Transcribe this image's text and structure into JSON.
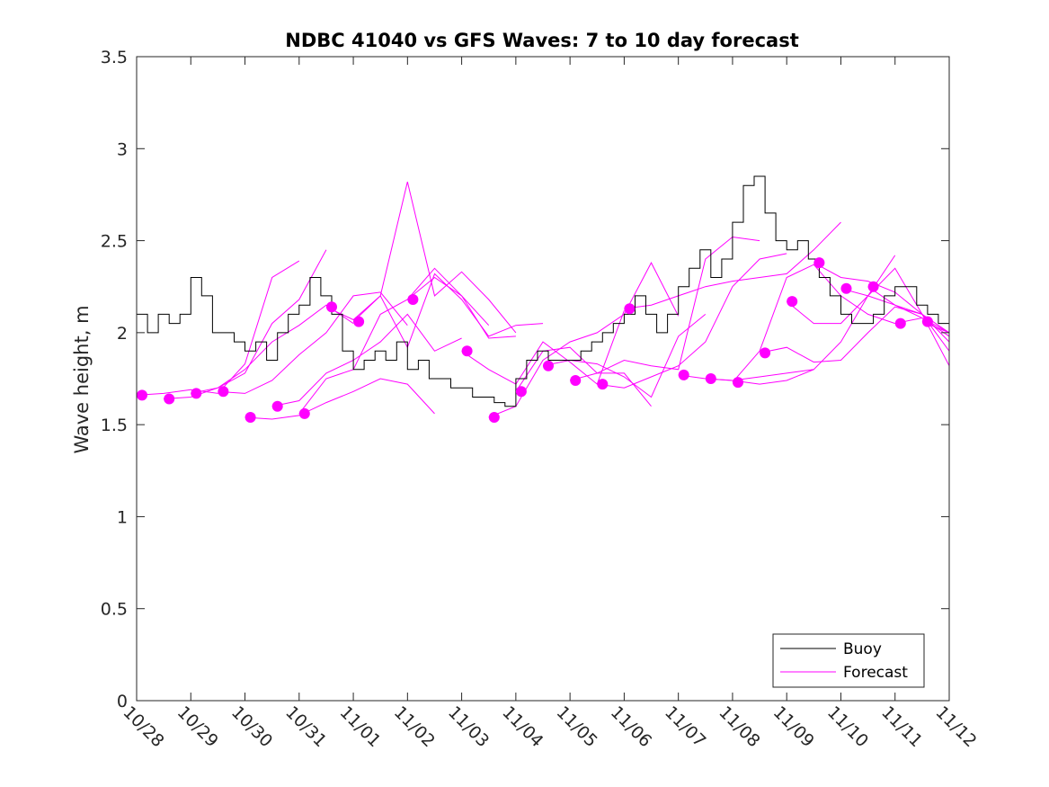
{
  "chart_data": {
    "type": "line",
    "title": "NDBC 41040 vs GFS Waves: 7 to 10 day forecast",
    "xlabel": "",
    "ylabel": "Wave height, m",
    "xlim": [
      0,
      15
    ],
    "ylim": [
      0,
      3.5
    ],
    "x_unit": "days since 10/28",
    "x_ticks": [
      0,
      1,
      2,
      3,
      4,
      5,
      6,
      7,
      8,
      9,
      10,
      11,
      12,
      13,
      14,
      15
    ],
    "x_tick_labels": [
      "10/28",
      "10/29",
      "10/30",
      "10/31",
      "11/01",
      "11/02",
      "11/03",
      "11/04",
      "11/05",
      "11/06",
      "11/07",
      "11/08",
      "11/09",
      "11/10",
      "11/11",
      "11/12"
    ],
    "y_ticks": [
      0,
      0.5,
      1,
      1.5,
      2,
      2.5,
      3,
      3.5
    ],
    "y_tick_labels": [
      "0",
      "0.5",
      "1",
      "1.5",
      "2",
      "2.5",
      "3",
      "3.5"
    ],
    "grid": false,
    "legend_position": "bottom-right",
    "colors": {
      "buoy": "#000000",
      "forecast": "#ff00ff",
      "axes": "#262626"
    },
    "series": [
      {
        "name": "Buoy",
        "style": "line",
        "color": "#000000",
        "x": [
          0,
          0.2,
          0.4,
          0.6,
          0.8,
          1.0,
          1.2,
          1.4,
          1.6,
          1.8,
          2.0,
          2.2,
          2.4,
          2.6,
          2.8,
          3.0,
          3.2,
          3.4,
          3.6,
          3.8,
          4.0,
          4.2,
          4.4,
          4.6,
          4.8,
          5.0,
          5.2,
          5.4,
          5.6,
          5.8,
          6.0,
          6.2,
          6.4,
          6.6,
          6.8,
          7.0,
          7.2,
          7.4,
          7.6,
          7.8,
          8.0,
          8.2,
          8.4,
          8.6,
          8.8,
          9.0,
          9.2,
          9.4,
          9.6,
          9.8,
          10.0,
          10.2,
          10.4,
          10.6,
          10.8,
          11.0,
          11.2,
          11.4,
          11.6,
          11.8,
          12.0,
          12.2,
          12.4,
          12.6,
          12.8,
          13.0,
          13.2,
          13.4,
          13.6,
          13.8,
          14.0,
          14.2,
          14.4,
          14.6,
          14.8,
          15.0
        ],
        "values": [
          2.1,
          2.0,
          2.1,
          2.05,
          2.1,
          2.3,
          2.2,
          2.0,
          2.0,
          1.95,
          1.9,
          1.95,
          1.85,
          2.0,
          2.1,
          2.15,
          2.3,
          2.2,
          2.1,
          1.9,
          1.8,
          1.85,
          1.9,
          1.85,
          1.95,
          1.8,
          1.85,
          1.75,
          1.75,
          1.7,
          1.7,
          1.65,
          1.65,
          1.62,
          1.6,
          1.75,
          1.85,
          1.9,
          1.85,
          1.85,
          1.85,
          1.9,
          1.95,
          2.0,
          2.05,
          2.1,
          2.2,
          2.1,
          2.0,
          2.1,
          2.25,
          2.35,
          2.45,
          2.3,
          2.4,
          2.6,
          2.8,
          2.85,
          2.65,
          2.5,
          2.45,
          2.5,
          2.4,
          2.3,
          2.2,
          2.1,
          2.05,
          2.05,
          2.1,
          2.2,
          2.25,
          2.25,
          2.15,
          2.1,
          2.05,
          2.0
        ]
      },
      {
        "name": "Forecast",
        "style": "line",
        "color": "#ff00ff",
        "runs": [
          {
            "x": [
              0,
              0.5,
              1.0,
              1.5,
              2.0,
              2.5,
              3.0
            ],
            "values": [
              1.66,
              1.67,
              1.69,
              1.67,
              1.83,
              2.3,
              2.39
            ]
          },
          {
            "x": [
              0.5,
              1.0,
              1.5,
              2.0,
              2.5,
              3.0,
              3.5
            ],
            "values": [
              1.64,
              1.65,
              1.7,
              1.78,
              2.05,
              2.18,
              2.45
            ]
          },
          {
            "x": [
              1.0,
              1.5,
              2.0,
              2.5,
              3.0,
              3.5,
              4.0
            ],
            "values": [
              1.67,
              1.7,
              1.8,
              1.95,
              2.04,
              2.15,
              2.05
            ]
          },
          {
            "x": [
              1.5,
              2.0,
              2.5,
              3.0,
              3.5,
              4.0,
              4.5,
              5.0
            ],
            "values": [
              1.68,
              1.67,
              1.74,
              1.88,
              2.0,
              2.2,
              2.22,
              2.04
            ]
          },
          {
            "x": [
              2.0,
              2.5,
              3.0,
              3.5,
              4.0,
              4.5,
              5.0,
              5.5
            ],
            "values": [
              1.54,
              1.53,
              1.55,
              1.62,
              1.68,
              1.75,
              1.72,
              1.56
            ]
          },
          {
            "x": [
              2.5,
              3.0,
              3.5,
              4.0,
              4.5,
              5.0,
              5.5,
              6.0
            ],
            "values": [
              1.6,
              1.63,
              1.78,
              1.85,
              1.95,
              2.1,
              1.9,
              1.97
            ]
          },
          {
            "x": [
              3.0,
              3.5,
              4.0,
              4.5,
              5.0,
              5.5,
              6.0,
              6.5
            ],
            "values": [
              1.56,
              1.75,
              1.8,
              2.1,
              2.18,
              2.3,
              2.2,
              2.04
            ]
          },
          {
            "x": [
              3.5,
              4.0,
              4.5,
              5.0,
              5.5,
              6.0,
              6.5,
              7.0
            ],
            "values": [
              2.14,
              2.07,
              2.2,
              2.82,
              2.2,
              2.33,
              2.18,
              2.0
            ]
          },
          {
            "x": [
              4.0,
              4.5,
              5.0,
              5.5,
              6.0,
              6.5,
              7.0,
              7.5
            ],
            "values": [
              2.06,
              2.2,
              1.92,
              2.32,
              2.18,
              1.98,
              2.04,
              2.05
            ]
          },
          {
            "x": [
              5.0,
              5.5,
              6.0,
              6.5,
              7.0
            ],
            "values": [
              2.18,
              2.35,
              2.2,
              1.97,
              1.98
            ]
          },
          {
            "x": [
              6.0,
              6.5,
              7.0,
              7.5,
              8.0,
              8.5,
              9.0
            ],
            "values": [
              1.9,
              1.8,
              1.72,
              1.95,
              1.84,
              1.72,
              2.12
            ]
          },
          {
            "x": [
              6.5,
              7.0,
              7.5,
              8.0,
              8.5,
              9.0,
              9.5,
              10.0
            ],
            "values": [
              1.54,
              1.6,
              1.85,
              1.95,
              2.0,
              2.1,
              2.38,
              2.09
            ]
          },
          {
            "x": [
              7.0,
              7.5,
              8.0,
              8.5,
              9.0,
              9.5
            ],
            "values": [
              1.68,
              1.9,
              1.92,
              1.78,
              1.78,
              1.6
            ]
          },
          {
            "x": [
              7.5,
              8.0,
              8.5,
              9.0,
              9.5,
              10.0,
              10.5
            ],
            "values": [
              1.82,
              1.85,
              1.83,
              1.76,
              1.65,
              1.98,
              2.1
            ]
          },
          {
            "x": [
              8.0,
              8.5,
              9.0,
              9.5,
              10.0,
              10.5,
              11.0,
              11.5
            ],
            "values": [
              1.74,
              1.78,
              1.85,
              1.82,
              1.8,
              2.4,
              2.52,
              2.5
            ]
          },
          {
            "x": [
              8.5,
              9.0,
              9.5,
              10.0,
              10.5,
              11.0,
              11.5,
              12.0
            ],
            "values": [
              1.72,
              1.7,
              1.76,
              1.82,
              1.95,
              2.25,
              2.4,
              2.43
            ]
          },
          {
            "x": [
              9.0,
              9.5,
              10.0,
              10.5,
              11.0,
              11.5,
              12.0,
              12.5,
              13.0
            ],
            "values": [
              2.13,
              2.15,
              2.2,
              2.25,
              2.28,
              2.3,
              2.32,
              2.45,
              2.6
            ]
          },
          {
            "x": [
              10.0,
              10.5,
              11.0,
              11.5,
              12.0,
              12.5
            ],
            "values": [
              1.77,
              1.75,
              1.74,
              1.76,
              1.78,
              1.8
            ]
          },
          {
            "x": [
              10.5,
              11.0,
              11.5,
              12.0,
              12.5,
              13.0,
              13.5,
              14.0
            ],
            "values": [
              1.75,
              1.74,
              1.72,
              1.74,
              1.8,
              1.95,
              2.2,
              2.42
            ]
          },
          {
            "x": [
              11.0,
              11.5,
              12.0,
              12.5,
              13.0,
              13.5,
              14.0
            ],
            "values": [
              1.73,
              1.9,
              2.3,
              2.37,
              2.2,
              2.1,
              2.05
            ]
          },
          {
            "x": [
              11.5,
              12.0,
              12.5,
              13.0,
              13.5,
              14.0,
              14.5,
              15.0
            ],
            "values": [
              1.89,
              1.92,
              1.84,
              1.85,
              2.0,
              2.14,
              2.1,
              1.82
            ]
          },
          {
            "x": [
              12.0,
              12.5,
              13.0,
              13.5,
              14.0,
              14.5,
              15.0
            ],
            "values": [
              2.17,
              2.05,
              2.05,
              2.2,
              2.35,
              2.1,
              2.0
            ]
          },
          {
            "x": [
              12.5,
              13.0,
              13.5,
              14.0,
              14.5,
              15.0
            ],
            "values": [
              2.38,
              2.3,
              2.28,
              2.22,
              2.1,
              1.9
            ]
          },
          {
            "x": [
              13.0,
              13.5,
              14.0,
              14.5,
              15.0
            ],
            "values": [
              2.24,
              2.2,
              2.15,
              2.1,
              1.95
            ]
          },
          {
            "x": [
              13.5,
              14.0,
              14.5,
              15.0
            ],
            "values": [
              2.25,
              2.15,
              2.08,
              1.98
            ]
          },
          {
            "x": [
              14.0,
              14.5,
              15.0
            ],
            "values": [
              2.05,
              2.08,
              2.0
            ]
          },
          {
            "x": [
              14.5,
              15.0
            ],
            "values": [
              2.06,
              2.0
            ]
          }
        ]
      }
    ],
    "forecast_markers": {
      "x": [
        0.1,
        0.6,
        1.1,
        1.6,
        2.1,
        2.6,
        3.1,
        3.6,
        4.1,
        5.1,
        6.1,
        6.6,
        7.1,
        7.6,
        8.1,
        8.6,
        9.1,
        10.1,
        10.6,
        11.1,
        11.6,
        12.1,
        12.6,
        13.1,
        13.6,
        14.1,
        14.6
      ],
      "values": [
        1.66,
        1.64,
        1.67,
        1.68,
        1.54,
        1.6,
        1.56,
        2.14,
        2.06,
        2.18,
        1.9,
        1.54,
        1.68,
        1.82,
        1.74,
        1.72,
        2.13,
        1.77,
        1.75,
        1.73,
        1.89,
        2.17,
        2.38,
        2.24,
        2.25,
        2.05,
        2.06
      ]
    },
    "legend": [
      "Buoy",
      "Forecast"
    ]
  }
}
